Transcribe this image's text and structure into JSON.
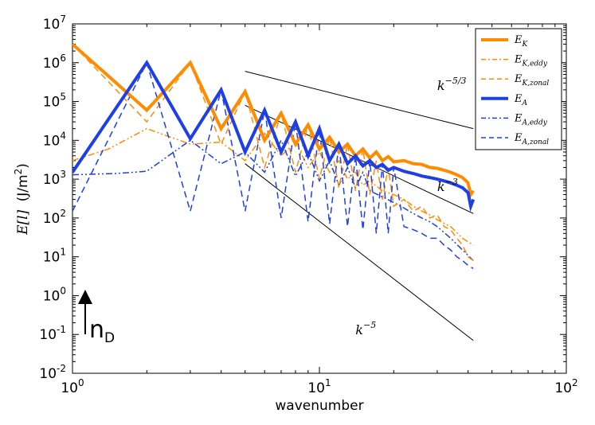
{
  "chart_data": {
    "type": "line",
    "xscale": "log",
    "yscale": "log",
    "xlim": [
      1,
      100
    ],
    "ylim": [
      0.01,
      10000000
    ],
    "xlabel": "wavenumber",
    "ylabel": {
      "prefix": "E[l]",
      "units": "(J/m",
      "sup": "2",
      "close": ")"
    },
    "xticks": [
      {
        "value": 1,
        "base": "10",
        "exp": "0"
      },
      {
        "value": 10,
        "base": "10",
        "exp": "1"
      },
      {
        "value": 100,
        "base": "10",
        "exp": "2"
      }
    ],
    "yticks": [
      {
        "value": 0.01,
        "base": "10",
        "exp": "-2"
      },
      {
        "value": 0.1,
        "base": "10",
        "exp": "-1"
      },
      {
        "value": 1,
        "base": "10",
        "exp": "0"
      },
      {
        "value": 10,
        "base": "10",
        "exp": "1"
      },
      {
        "value": 100,
        "base": "10",
        "exp": "2"
      },
      {
        "value": 1000,
        "base": "10",
        "exp": "3"
      },
      {
        "value": 10000,
        "base": "10",
        "exp": "4"
      },
      {
        "value": 100000,
        "base": "10",
        "exp": "5"
      },
      {
        "value": 1000000,
        "base": "10",
        "exp": "6"
      },
      {
        "value": 10000000,
        "base": "10",
        "exp": "7"
      }
    ],
    "series": [
      {
        "id": "EK",
        "name": "E",
        "sub": "K",
        "color": "#ff8c00",
        "style": "solid",
        "width": 4,
        "x": [
          1,
          2,
          3,
          4,
          5,
          6,
          7,
          8,
          9,
          10,
          11,
          12,
          13,
          14,
          15,
          16,
          17,
          18,
          19,
          20,
          22,
          24,
          26,
          28,
          30,
          32,
          34,
          36,
          38,
          40,
          41,
          42
        ],
        "y": [
          3000000,
          60000,
          1000000,
          20000,
          180000,
          10000,
          50000,
          8000,
          25000,
          6000,
          12000,
          5000,
          8000,
          4000,
          6000,
          3500,
          5000,
          3000,
          3800,
          2800,
          3000,
          2500,
          2400,
          2000,
          1900,
          1700,
          1500,
          1300,
          1100,
          800,
          400,
          500
        ]
      },
      {
        "id": "EKeddy",
        "name": "E",
        "sub": "K,eddy",
        "color": "#ff8c00",
        "style": "dashdot",
        "width": 1.5,
        "x": [
          1,
          1.4,
          2,
          3,
          4,
          5,
          6,
          7,
          8,
          9,
          10,
          11,
          12,
          13,
          14,
          15,
          16,
          18,
          20,
          22,
          24,
          26,
          28,
          30,
          34,
          38,
          42
        ],
        "y": [
          3000,
          6000,
          20000,
          8000,
          9000,
          3000,
          15000,
          4000,
          9000,
          2000,
          5000,
          1500,
          3000,
          1000,
          1500,
          700,
          900,
          500,
          400,
          300,
          200,
          150,
          120,
          90,
          60,
          30,
          20
        ]
      },
      {
        "id": "EKzonal",
        "name": "E",
        "sub": "K,zonal",
        "color": "#ff8c00",
        "style": "dashed",
        "width": 1.5,
        "x": [
          1,
          2,
          3,
          4,
          5,
          6,
          7,
          8,
          9,
          10,
          11,
          12,
          13,
          14,
          15,
          16,
          17,
          18,
          19,
          20,
          22,
          24,
          26,
          28,
          30,
          32,
          34,
          36,
          38,
          40,
          42
        ],
        "y": [
          3000000,
          30000,
          1000000,
          8000,
          180000,
          2000,
          50000,
          1500,
          25000,
          1000,
          12000,
          600,
          8000,
          500,
          6000,
          400,
          3000,
          300,
          2000,
          200,
          300,
          150,
          200,
          100,
          120,
          60,
          50,
          30,
          20,
          10,
          8
        ]
      },
      {
        "id": "EA",
        "name": "E",
        "sub": "A",
        "color": "#1f3fe6",
        "style": "solid",
        "width": 4,
        "x": [
          1,
          2,
          3,
          4,
          5,
          6,
          7,
          8,
          9,
          10,
          11,
          12,
          13,
          14,
          15,
          16,
          17,
          18,
          19,
          20,
          22,
          24,
          26,
          28,
          30,
          32,
          34,
          36,
          38,
          40,
          41,
          42
        ],
        "y": [
          1500,
          1000000,
          11000,
          200000,
          5000,
          60000,
          5000,
          30000,
          4000,
          20000,
          3000,
          8000,
          2500,
          4000,
          2200,
          3000,
          2000,
          2400,
          1700,
          2000,
          1600,
          1400,
          1200,
          1100,
          1000,
          900,
          800,
          700,
          600,
          450,
          200,
          300
        ]
      },
      {
        "id": "EAeddy",
        "name": "E",
        "sub": "A,eddy",
        "color": "#1f3fe6",
        "style": "dashdot",
        "width": 1.5,
        "x": [
          1,
          1.5,
          2,
          3,
          4,
          5,
          6,
          7,
          8,
          9,
          10,
          11,
          12,
          13,
          14,
          15,
          16,
          18,
          20,
          22,
          24,
          26,
          28,
          30,
          34,
          38,
          42
        ],
        "y": [
          1300,
          1400,
          1600,
          10000,
          2500,
          5000,
          1500,
          10000,
          1200,
          5000,
          900,
          3000,
          700,
          2000,
          600,
          1500,
          500,
          350,
          250,
          180,
          130,
          100,
          80,
          60,
          30,
          15,
          8
        ]
      },
      {
        "id": "EAzonal",
        "name": "E",
        "sub": "A,zonal",
        "color": "#1f3fe6",
        "style": "dashed",
        "width": 1.5,
        "x": [
          1,
          2,
          3,
          4,
          5,
          6,
          7,
          8,
          9,
          10,
          11,
          12,
          13,
          14,
          15,
          16,
          17,
          18,
          19,
          20,
          22,
          24,
          26,
          28,
          30,
          32,
          34,
          36,
          38,
          40,
          42
        ],
        "y": [
          150,
          1000000,
          150,
          200000,
          150,
          60000,
          100,
          30000,
          80,
          20000,
          70,
          8000,
          60,
          4000,
          50,
          3000,
          40,
          2400,
          40,
          2000,
          60,
          50,
          40,
          30,
          30,
          20,
          15,
          10,
          8,
          6,
          5
        ]
      }
    ],
    "reference_lines": [
      {
        "id": "k53",
        "label": "k",
        "exp": "−5/3",
        "x": [
          5,
          42
        ],
        "y": [
          600000,
          20000
        ],
        "label_x": 30,
        "label_y": 200000
      },
      {
        "id": "k3",
        "label": "k",
        "exp": "−3",
        "x": [
          5,
          42
        ],
        "y": [
          80000,
          130
        ],
        "label_x": 30,
        "label_y": 500
      },
      {
        "id": "k5",
        "label": "k",
        "exp": "−5",
        "x": [
          5,
          42
        ],
        "y": [
          2500,
          0.07
        ],
        "label_x": 14,
        "label_y": 0.1
      }
    ],
    "annotation": {
      "text": "n",
      "sub": "D"
    },
    "legend": {
      "placement": "top-right"
    }
  }
}
